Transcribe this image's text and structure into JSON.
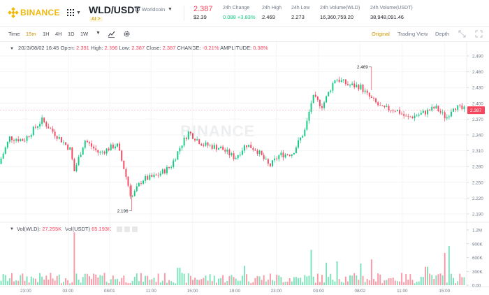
{
  "header": {
    "logo_text": "BINANCE",
    "pair": "WLD/USDT",
    "coin_name": "Worldcoin",
    "ai_badge": "AI >",
    "price": "2.387",
    "price_usd": "$2.39",
    "stats": [
      {
        "label": "24h Change",
        "value": "0.088 +3.83%",
        "up": true
      },
      {
        "label": "24h High",
        "value": "2.469",
        "up": false
      },
      {
        "label": "24h Low",
        "value": "2.273",
        "up": false
      },
      {
        "label": "24h Volume(WLD)",
        "value": "16,360,759.20",
        "up": false
      },
      {
        "label": "24h Volume(USDT)",
        "value": "38,948,091.46",
        "up": false
      }
    ]
  },
  "toolbar": {
    "time_label": "Time",
    "intervals": [
      "15m",
      "1H",
      "4H",
      "1D",
      "1W"
    ],
    "active_interval": "15m",
    "views": [
      "Original",
      "Trading View",
      "Depth"
    ],
    "active_view": "Original"
  },
  "ohlc": {
    "date": "2023/08/02 16:45",
    "open_label": "Open:",
    "open": "2.391",
    "high_label": "High:",
    "high": "2.396",
    "low_label": "Low:",
    "low": "2.387",
    "close_label": "Close:",
    "close": "2.387",
    "change_label": "CHANGE:",
    "change": "-0.21%",
    "amplitude_label": "AMPLITUDE:",
    "amplitude": "0.38%"
  },
  "volume": {
    "wld_label": "Vol(WLD):",
    "wld": "27.255K",
    "usdt_label": "Vol(USDT)",
    "usdt": "65.193K"
  },
  "watermark": "BINANCE",
  "colors": {
    "up": "#0ecb81",
    "down": "#f6465d",
    "accent": "#f0b90b"
  },
  "chart_data": {
    "type": "candlestick",
    "price_axis": [
      "2.490",
      "2.460",
      "2.430",
      "2.400",
      "2.370",
      "2.340",
      "2.310",
      "2.280",
      "2.250",
      "2.220",
      "2.190"
    ],
    "price_axis_values": [
      2.49,
      2.46,
      2.43,
      2.4,
      2.37,
      2.34,
      2.31,
      2.28,
      2.25,
      2.22,
      2.19
    ],
    "current_price_tag": "2.387",
    "current_price": 2.387,
    "max_label": "2.469",
    "max_value": 2.469,
    "min_label": "2.196",
    "min_value": 2.196,
    "volume_axis": [
      "1.2M",
      "900K",
      "600K",
      "300K",
      "0.00"
    ],
    "volume_axis_values": [
      1200000,
      900000,
      600000,
      300000,
      0
    ],
    "time_axis": [
      "23:00",
      "03:00",
      "08/01",
      "11:00",
      "15:00",
      "19:00",
      "23:00",
      "03:00",
      "08/02",
      "11:00",
      "15:00"
    ],
    "x_domain": [
      0,
      650
    ],
    "time_axis_x": [
      36,
      95,
      153,
      211,
      269,
      328,
      386,
      445,
      503,
      562,
      621
    ],
    "anchors": [
      [
        0,
        2.285
      ],
      [
        15,
        2.335
      ],
      [
        35,
        2.33
      ],
      [
        60,
        2.368
      ],
      [
        80,
        2.34
      ],
      [
        100,
        2.312
      ],
      [
        105,
        2.27
      ],
      [
        120,
        2.33
      ],
      [
        140,
        2.305
      ],
      [
        165,
        2.322
      ],
      [
        175,
        2.275
      ],
      [
        185,
        2.22
      ],
      [
        200,
        2.255
      ],
      [
        220,
        2.262
      ],
      [
        240,
        2.28
      ],
      [
        255,
        2.322
      ],
      [
        265,
        2.345
      ],
      [
        285,
        2.322
      ],
      [
        310,
        2.315
      ],
      [
        330,
        2.296
      ],
      [
        345,
        2.322
      ],
      [
        360,
        2.312
      ],
      [
        378,
        2.28
      ],
      [
        392,
        2.302
      ],
      [
        410,
        2.305
      ],
      [
        428,
        2.35
      ],
      [
        438,
        2.412
      ],
      [
        452,
        2.395
      ],
      [
        470,
        2.448
      ],
      [
        488,
        2.435
      ],
      [
        505,
        2.432
      ],
      [
        515,
        2.415
      ],
      [
        535,
        2.39
      ],
      [
        555,
        2.388
      ],
      [
        570,
        2.372
      ],
      [
        590,
        2.38
      ],
      [
        610,
        2.392
      ],
      [
        625,
        2.372
      ],
      [
        635,
        2.395
      ],
      [
        648,
        2.388
      ]
    ],
    "volume_spikes": [
      {
        "x": 105,
        "v": 1150000
      },
      {
        "x": 435,
        "v": 770000
      },
      {
        "x": 627,
        "v": 850000
      },
      {
        "x": 519,
        "v": 560000
      },
      {
        "x": 622,
        "v": 700000
      },
      {
        "x": 596,
        "v": 400000
      },
      {
        "x": 455,
        "v": 490000
      },
      {
        "x": 250,
        "v": 380000
      },
      {
        "x": 342,
        "v": 420000
      },
      {
        "x": 470,
        "v": 520000
      },
      {
        "x": 505,
        "v": 470000
      }
    ]
  }
}
